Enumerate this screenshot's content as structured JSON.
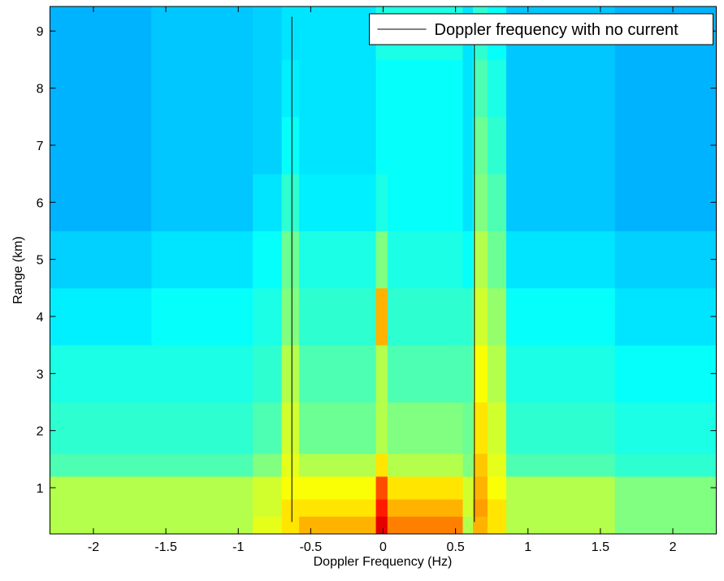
{
  "chart_data": {
    "type": "heatmap",
    "xlabel": "Doppler Frequency (Hz)",
    "ylabel": "Range (km)",
    "xlim": [
      -2.3,
      2.3
    ],
    "ylim": [
      0.19,
      9.43
    ],
    "xticks": [
      -2,
      -1.5,
      -1,
      -0.5,
      0,
      0.5,
      1,
      1.5,
      2
    ],
    "yticks": [
      1,
      2,
      3,
      4,
      5,
      6,
      7,
      8,
      9
    ],
    "colormap": "jet",
    "legend": "upper right",
    "x_edges": [
      -2.3,
      -1.6,
      -0.9,
      -0.7,
      -0.58,
      -0.05,
      0.03,
      0.55,
      0.62,
      0.72,
      0.85,
      1.6,
      2.3
    ],
    "y_edges": [
      0.19,
      0.5,
      0.8,
      1.2,
      1.6,
      2.5,
      3.5,
      4.5,
      5.5,
      6.5,
      7.5,
      8.5,
      9.43
    ],
    "z": [
      [
        0.55,
        0.55,
        0.6,
        0.65,
        0.7,
        0.9,
        0.75,
        0.55,
        0.7,
        0.65,
        0.55,
        0.5
      ],
      [
        0.55,
        0.55,
        0.58,
        0.65,
        0.65,
        0.85,
        0.7,
        0.58,
        0.72,
        0.65,
        0.55,
        0.5
      ],
      [
        0.55,
        0.55,
        0.58,
        0.62,
        0.62,
        0.8,
        0.65,
        0.58,
        0.7,
        0.62,
        0.55,
        0.5
      ],
      [
        0.45,
        0.45,
        0.5,
        0.6,
        0.55,
        0.65,
        0.55,
        0.5,
        0.68,
        0.6,
        0.45,
        0.42
      ],
      [
        0.42,
        0.42,
        0.45,
        0.58,
        0.48,
        0.55,
        0.5,
        0.48,
        0.65,
        0.58,
        0.42,
        0.4
      ],
      [
        0.4,
        0.4,
        0.42,
        0.55,
        0.45,
        0.55,
        0.45,
        0.45,
        0.62,
        0.55,
        0.4,
        0.38
      ],
      [
        0.36,
        0.38,
        0.4,
        0.5,
        0.42,
        0.7,
        0.42,
        0.42,
        0.58,
        0.52,
        0.38,
        0.35
      ],
      [
        0.33,
        0.35,
        0.38,
        0.48,
        0.4,
        0.5,
        0.4,
        0.38,
        0.55,
        0.48,
        0.35,
        0.33
      ],
      [
        0.3,
        0.32,
        0.35,
        0.42,
        0.36,
        0.4,
        0.38,
        0.35,
        0.5,
        0.45,
        0.32,
        0.3
      ],
      [
        0.3,
        0.32,
        0.33,
        0.38,
        0.35,
        0.38,
        0.38,
        0.35,
        0.48,
        0.42,
        0.32,
        0.3
      ],
      [
        0.3,
        0.32,
        0.33,
        0.36,
        0.35,
        0.38,
        0.38,
        0.35,
        0.45,
        0.4,
        0.32,
        0.3
      ],
      [
        0.3,
        0.32,
        0.33,
        0.35,
        0.35,
        0.4,
        0.4,
        0.35,
        0.42,
        0.38,
        0.32,
        0.3
      ]
    ],
    "series": [
      {
        "name": "Doppler frequency with no current",
        "color": "#000000",
        "x": [
          -0.63,
          -0.63,
          null,
          0.63,
          0.63
        ],
        "y": [
          0.4,
          9.25,
          null,
          0.4,
          9.25
        ]
      }
    ]
  }
}
